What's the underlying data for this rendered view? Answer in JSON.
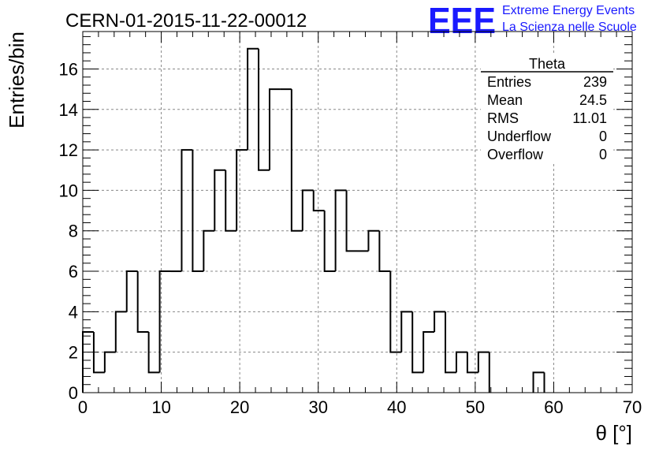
{
  "header": {
    "run_title": "CERN-01-2015-11-22-00012",
    "logo_text": "EEE",
    "logo_line1": "Extreme Energy Events",
    "logo_line2": "La Scienza nelle Scuole"
  },
  "stats_box": {
    "title": "Theta",
    "rows": [
      {
        "label": "Entries",
        "value": "239"
      },
      {
        "label": "Mean",
        "value": "24.5"
      },
      {
        "label": "RMS",
        "value": "11.01"
      },
      {
        "label": "Underflow",
        "value": "0"
      },
      {
        "label": "Overflow",
        "value": "0"
      }
    ]
  },
  "colors": {
    "line": "#000000",
    "grid": "#888888",
    "logo": "#1a1aff"
  },
  "chart_data": {
    "type": "bar",
    "style": "step-histogram",
    "xlabel": "θ [°]",
    "ylabel": "Entries/bin",
    "xlim": [
      0,
      70
    ],
    "ylim": [
      0,
      17.85
    ],
    "x_ticks": [
      0,
      10,
      20,
      30,
      40,
      50,
      60,
      70
    ],
    "y_ticks": [
      0,
      2,
      4,
      6,
      8,
      10,
      12,
      14,
      16
    ],
    "grid": true,
    "bin_width": 1.4,
    "bins": [
      {
        "x0": 0.0,
        "x1": 1.4,
        "count": 3
      },
      {
        "x0": 1.4,
        "x1": 2.8,
        "count": 1
      },
      {
        "x0": 2.8,
        "x1": 4.2,
        "count": 2
      },
      {
        "x0": 4.2,
        "x1": 5.6,
        "count": 4
      },
      {
        "x0": 5.6,
        "x1": 7.0,
        "count": 6
      },
      {
        "x0": 7.0,
        "x1": 8.4,
        "count": 3
      },
      {
        "x0": 8.4,
        "x1": 9.8,
        "count": 1
      },
      {
        "x0": 9.8,
        "x1": 11.2,
        "count": 6
      },
      {
        "x0": 11.2,
        "x1": 12.6,
        "count": 6
      },
      {
        "x0": 12.6,
        "x1": 14.0,
        "count": 12
      },
      {
        "x0": 14.0,
        "x1": 15.4,
        "count": 6
      },
      {
        "x0": 15.4,
        "x1": 16.8,
        "count": 8
      },
      {
        "x0": 16.8,
        "x1": 18.2,
        "count": 11
      },
      {
        "x0": 18.2,
        "x1": 19.6,
        "count": 8
      },
      {
        "x0": 19.6,
        "x1": 21.0,
        "count": 12
      },
      {
        "x0": 21.0,
        "x1": 22.4,
        "count": 17
      },
      {
        "x0": 22.4,
        "x1": 23.8,
        "count": 11
      },
      {
        "x0": 23.8,
        "x1": 25.2,
        "count": 15
      },
      {
        "x0": 25.2,
        "x1": 26.6,
        "count": 15
      },
      {
        "x0": 26.6,
        "x1": 28.0,
        "count": 8
      },
      {
        "x0": 28.0,
        "x1": 29.4,
        "count": 10
      },
      {
        "x0": 29.4,
        "x1": 30.8,
        "count": 9
      },
      {
        "x0": 30.8,
        "x1": 32.2,
        "count": 6
      },
      {
        "x0": 32.2,
        "x1": 33.6,
        "count": 10
      },
      {
        "x0": 33.6,
        "x1": 35.0,
        "count": 7
      },
      {
        "x0": 35.0,
        "x1": 36.4,
        "count": 7
      },
      {
        "x0": 36.4,
        "x1": 37.8,
        "count": 8
      },
      {
        "x0": 37.8,
        "x1": 39.2,
        "count": 6
      },
      {
        "x0": 39.2,
        "x1": 40.6,
        "count": 2
      },
      {
        "x0": 40.6,
        "x1": 42.0,
        "count": 4
      },
      {
        "x0": 42.0,
        "x1": 43.4,
        "count": 1
      },
      {
        "x0": 43.4,
        "x1": 44.8,
        "count": 3
      },
      {
        "x0": 44.8,
        "x1": 46.2,
        "count": 4
      },
      {
        "x0": 46.2,
        "x1": 47.6,
        "count": 1
      },
      {
        "x0": 47.6,
        "x1": 49.0,
        "count": 2
      },
      {
        "x0": 49.0,
        "x1": 50.4,
        "count": 1
      },
      {
        "x0": 50.4,
        "x1": 51.8,
        "count": 2
      },
      {
        "x0": 57.4,
        "x1": 58.8,
        "count": 1
      }
    ]
  }
}
